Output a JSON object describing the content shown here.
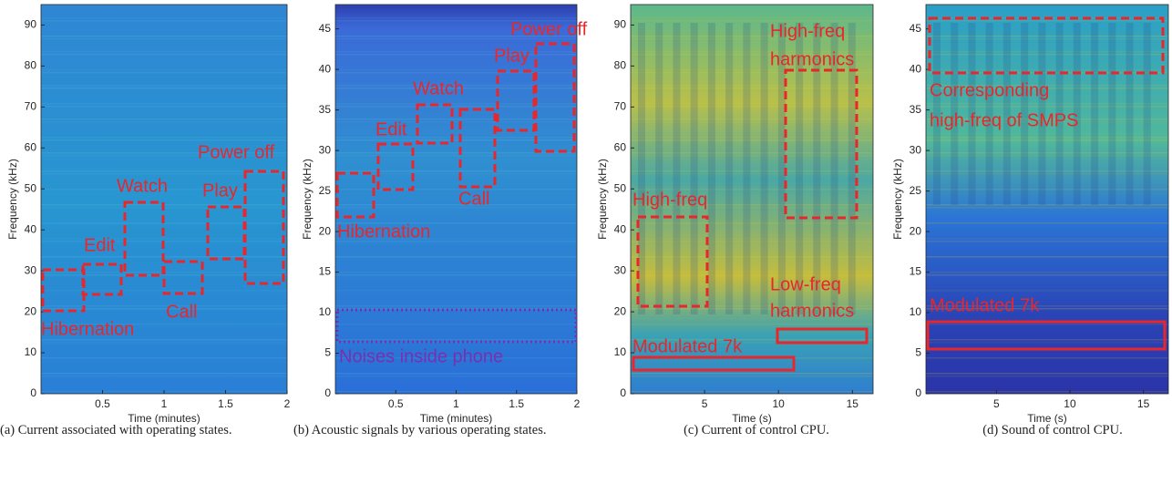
{
  "chart_data": [
    {
      "type": "spectrogram",
      "caption": "(a) Current associated with operating states.",
      "xlabel": "Time (minutes)",
      "ylabel": "Frequency (kHz)",
      "xlim": [
        0,
        2
      ],
      "xticks": [
        0.5,
        1,
        1.5,
        2
      ],
      "ylim": [
        0,
        95
      ],
      "yticks": [
        0,
        10,
        20,
        30,
        40,
        50,
        60,
        70,
        80,
        90
      ],
      "annotations": [
        {
          "text": "Hibernation"
        },
        {
          "text": "Edit"
        },
        {
          "text": "Watch"
        },
        {
          "text": "Call"
        },
        {
          "text": "Play"
        },
        {
          "text": "Power off"
        }
      ]
    },
    {
      "type": "spectrogram",
      "caption": "(b) Acoustic signals by various operating states.",
      "xlabel": "Time (minutes)",
      "ylabel": "Frequency (kHz)",
      "xlim": [
        0,
        2
      ],
      "xticks": [
        0.5,
        1,
        1.5,
        2
      ],
      "ylim": [
        0,
        48
      ],
      "yticks": [
        0,
        5,
        10,
        15,
        20,
        25,
        30,
        35,
        40,
        45
      ],
      "annotations": [
        {
          "text": "Hibernation"
        },
        {
          "text": "Edit"
        },
        {
          "text": "Watch"
        },
        {
          "text": "Call"
        },
        {
          "text": "Play"
        },
        {
          "text": "Power off"
        },
        {
          "text": "Noises inside phone"
        }
      ]
    },
    {
      "type": "spectrogram",
      "caption": "(c) Current of control CPU.",
      "xlabel": "Time (s)",
      "ylabel": "Frequency (kHz)",
      "xlim": [
        0,
        16.4
      ],
      "xticks": [
        5,
        10,
        15
      ],
      "ylim": [
        0,
        95
      ],
      "yticks": [
        0,
        10,
        20,
        30,
        40,
        50,
        60,
        70,
        80,
        90
      ],
      "annotations": [
        {
          "text": "High-freq"
        },
        {
          "text": "High-freq"
        },
        {
          "text": "harmonics"
        },
        {
          "text": "Low-freq"
        },
        {
          "text": "harmonics"
        },
        {
          "text": "Modulated 7k"
        }
      ]
    },
    {
      "type": "spectrogram",
      "caption": "(d) Sound of control CPU.",
      "xlabel": "Time (s)",
      "ylabel": "Frequency (kHz)",
      "xlim": [
        0.2,
        16.7
      ],
      "xticks": [
        5,
        10,
        15
      ],
      "ylim": [
        0,
        48
      ],
      "yticks": [
        0,
        5,
        10,
        15,
        20,
        25,
        30,
        35,
        40,
        45
      ],
      "annotations": [
        {
          "text": "Corresponding"
        },
        {
          "text": "high-freq of SMPS"
        },
        {
          "text": "Modulated 7k"
        }
      ]
    }
  ]
}
